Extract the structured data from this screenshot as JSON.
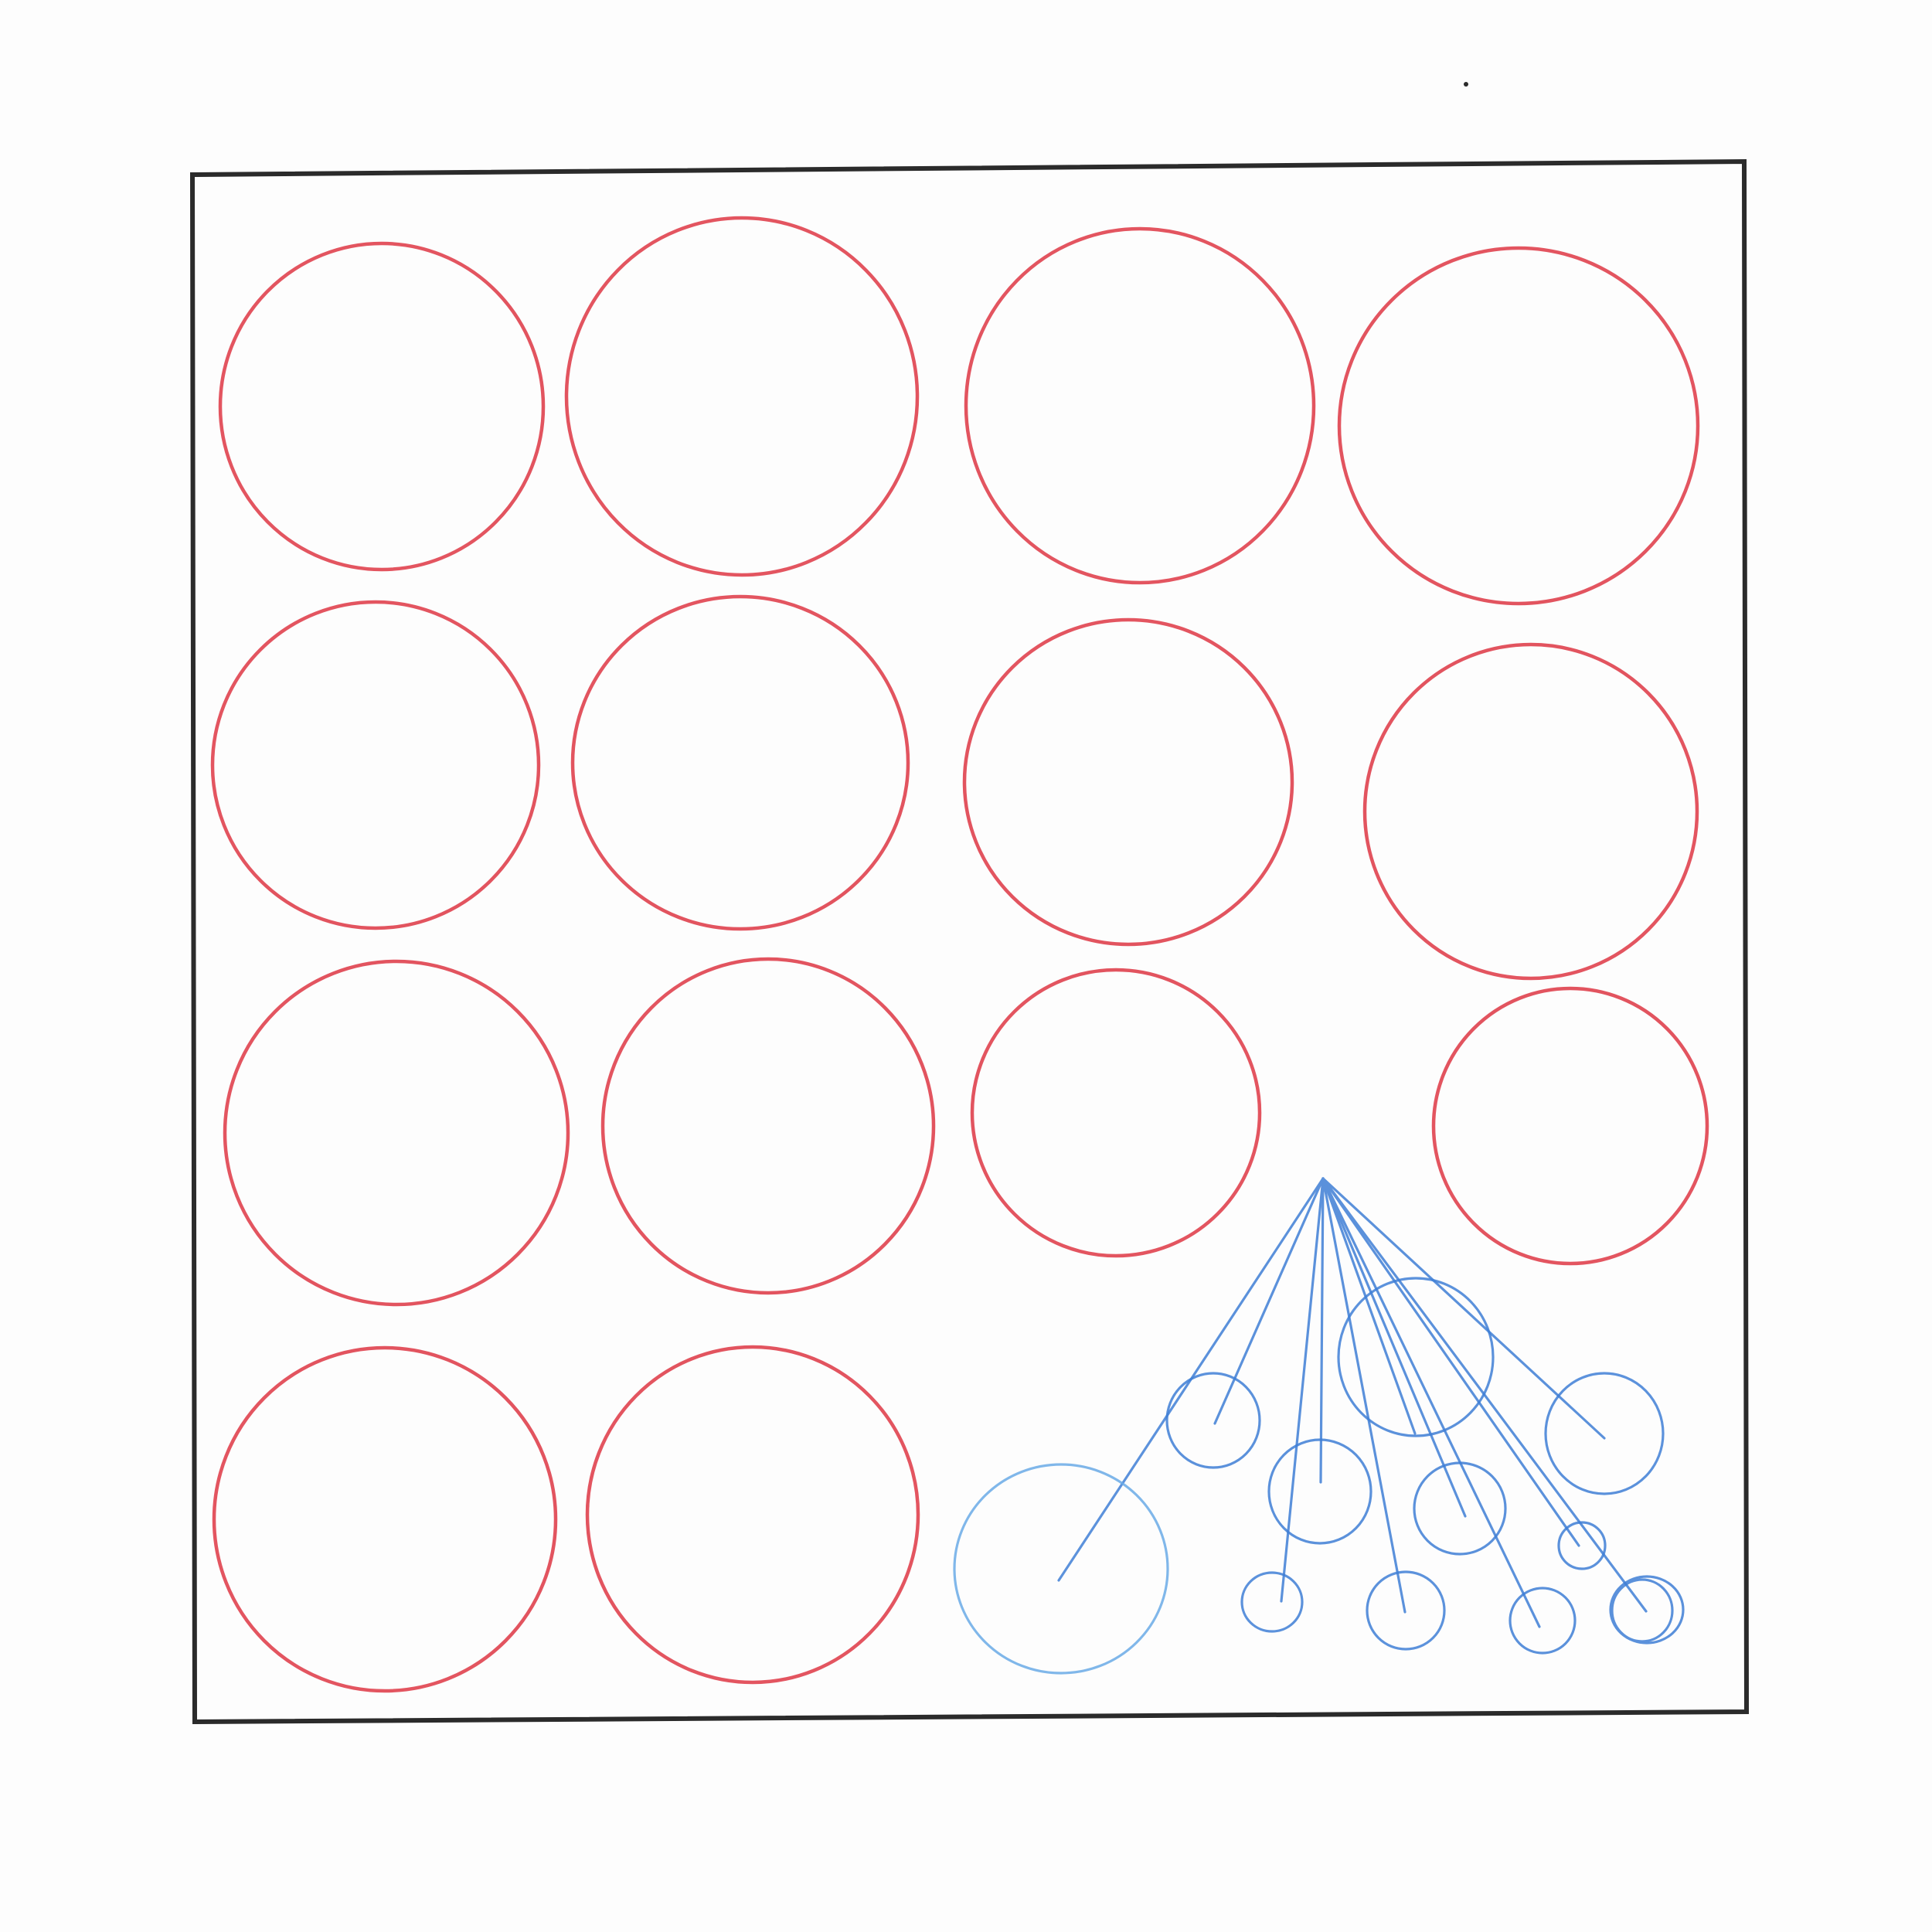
{
  "colors": {
    "paper": "#fdfdfd",
    "frame": "#2b2b2b",
    "red_pencil": "#e0424f",
    "blue_pencil": "#3f7fd6",
    "light_blue_pencil": "#6aaae6"
  },
  "drawing": {
    "red_circle_count": 14,
    "blue_circle_count": 12,
    "blue_line_count": 11
  }
}
